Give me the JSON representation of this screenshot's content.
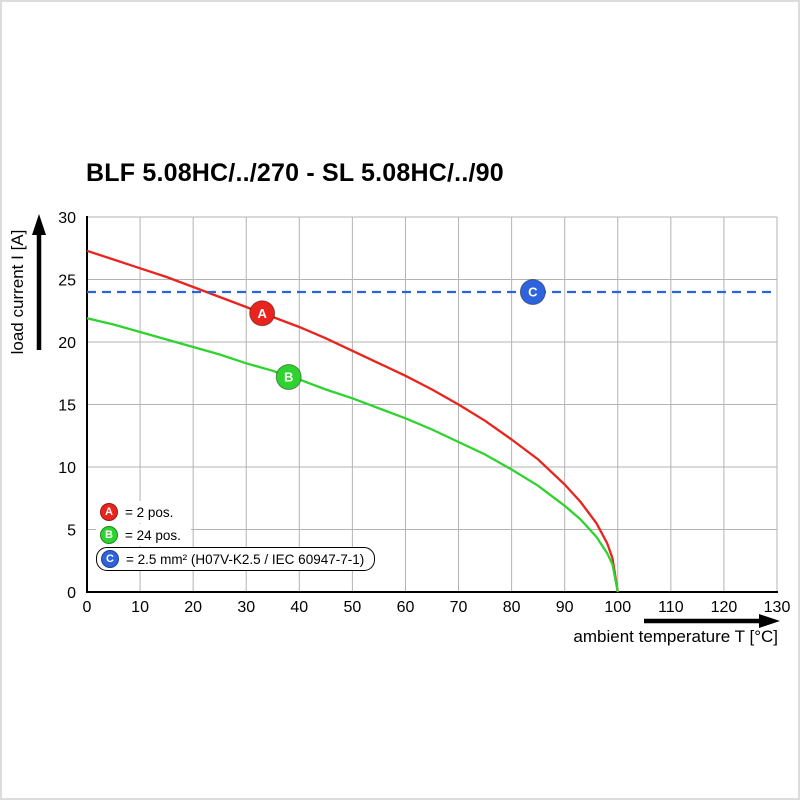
{
  "title": "BLF 5.08HC/../270 - SL 5.08HC/../90",
  "chart_data": {
    "type": "line",
    "title": "BLF 5.08HC/../270 - SL 5.08HC/../90",
    "xlabel": "ambient temperature T [°C]",
    "ylabel": "load current I [A]",
    "xlim": [
      0,
      130
    ],
    "ylim": [
      0,
      30
    ],
    "xticks": [
      0,
      10,
      20,
      30,
      40,
      50,
      60,
      70,
      80,
      90,
      100,
      110,
      120,
      130
    ],
    "yticks": [
      0,
      5,
      10,
      15,
      20,
      25,
      30
    ],
    "grid": true,
    "grid_color": "#b3b3b3",
    "legend_position": "lower-left",
    "series": [
      {
        "name": "A",
        "color": "#e9241d",
        "style": "solid",
        "points": [
          [
            0,
            27.3
          ],
          [
            5,
            26.6
          ],
          [
            10,
            25.9
          ],
          [
            15,
            25.2
          ],
          [
            20,
            24.4
          ],
          [
            25,
            23.6
          ],
          [
            30,
            22.8
          ],
          [
            33,
            22.3
          ],
          [
            35,
            22.0
          ],
          [
            40,
            21.2
          ],
          [
            45,
            20.3
          ],
          [
            50,
            19.3
          ],
          [
            55,
            18.3
          ],
          [
            60,
            17.3
          ],
          [
            65,
            16.2
          ],
          [
            70,
            15.0
          ],
          [
            75,
            13.7
          ],
          [
            80,
            12.2
          ],
          [
            85,
            10.6
          ],
          [
            90,
            8.6
          ],
          [
            93,
            7.2
          ],
          [
            96,
            5.5
          ],
          [
            98,
            3.9
          ],
          [
            99,
            2.7
          ],
          [
            100,
            0
          ]
        ]
      },
      {
        "name": "B",
        "color": "#2fd32f",
        "style": "solid",
        "points": [
          [
            0,
            21.9
          ],
          [
            5,
            21.4
          ],
          [
            10,
            20.8
          ],
          [
            15,
            20.2
          ],
          [
            20,
            19.6
          ],
          [
            25,
            19.0
          ],
          [
            30,
            18.3
          ],
          [
            35,
            17.7
          ],
          [
            38,
            17.2
          ],
          [
            40,
            17.0
          ],
          [
            45,
            16.2
          ],
          [
            50,
            15.5
          ],
          [
            55,
            14.7
          ],
          [
            60,
            13.9
          ],
          [
            65,
            13.0
          ],
          [
            70,
            12.0
          ],
          [
            75,
            11.0
          ],
          [
            80,
            9.8
          ],
          [
            85,
            8.5
          ],
          [
            90,
            6.9
          ],
          [
            93,
            5.8
          ],
          [
            96,
            4.4
          ],
          [
            98,
            3.1
          ],
          [
            99,
            2.2
          ],
          [
            100,
            0
          ]
        ]
      },
      {
        "name": "C",
        "color": "#2d64dd",
        "style": "dashed",
        "points": [
          [
            0,
            24
          ],
          [
            130,
            24
          ]
        ]
      }
    ],
    "markers": [
      {
        "label": "A",
        "x": 33,
        "y": 22.3,
        "color": "#e9241d"
      },
      {
        "label": "B",
        "x": 38,
        "y": 17.2,
        "color": "#2fd32f"
      },
      {
        "label": "C",
        "x": 84,
        "y": 24.0,
        "color": "#2d64dd"
      }
    ],
    "legend": [
      {
        "label": "A",
        "color": "#e9241d",
        "text": "= 2 pos.",
        "boxed": false
      },
      {
        "label": "B",
        "color": "#2fd32f",
        "text": "= 24 pos.",
        "boxed": false
      },
      {
        "label": "C",
        "color": "#2d64dd",
        "text": "= 2.5 mm² (H07V-K2.5 / IEC 60947-7-1)",
        "boxed": true
      }
    ]
  }
}
